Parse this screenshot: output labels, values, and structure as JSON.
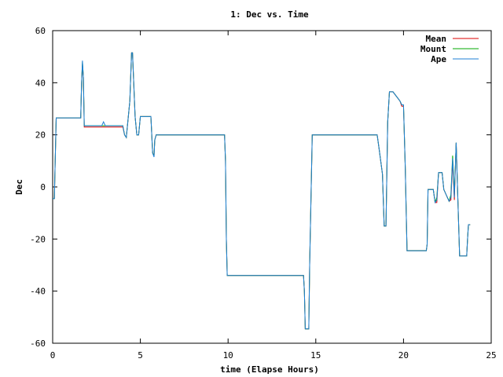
{
  "chart_data": {
    "type": "line",
    "title": "1: Dec vs. Time",
    "xlabel": "time (Elapse Hours)",
    "ylabel": "Dec",
    "xlim": [
      0,
      25
    ],
    "ylim": [
      -60,
      60
    ],
    "xticks": [
      0,
      5,
      10,
      15,
      20,
      25
    ],
    "yticks": [
      -60,
      -40,
      -20,
      0,
      20,
      40,
      60
    ],
    "grid": false,
    "legend_position": "top-right",
    "colors": {
      "mean": "#dd0000",
      "mount": "#00aa00",
      "ape": "#1f7fd6"
    },
    "series": [
      {
        "name": "Mean",
        "x": [
          0,
          0.1,
          0.12,
          0.2,
          1.6,
          1.65,
          1.7,
          1.75,
          1.8,
          1.85,
          4.0,
          4.1,
          4.2,
          4.4,
          4.5,
          4.55,
          4.7,
          4.8,
          4.9,
          5.0,
          5.6,
          5.7,
          5.78,
          5.82,
          5.9,
          9.8,
          9.85,
          9.9,
          9.95,
          10.0,
          14.3,
          14.35,
          14.4,
          14.6,
          14.65,
          14.8,
          18.5,
          18.6,
          18.8,
          18.9,
          19.0,
          19.1,
          19.2,
          19.3,
          19.4,
          19.8,
          19.9,
          20.0,
          20.1,
          20.2,
          21.3,
          21.35,
          21.4,
          21.5,
          21.7,
          21.8,
          21.9,
          22.0,
          22.2,
          22.3,
          22.6,
          22.7,
          22.8,
          22.9,
          23.0,
          23.1,
          23.2,
          23.3,
          23.6,
          23.65,
          23.7,
          23.8
        ],
        "y": [
          -4.5,
          -4.5,
          3,
          26.5,
          26.5,
          40,
          47,
          42,
          23,
          23,
          23,
          20,
          19,
          33,
          51.5,
          51.5,
          27,
          20,
          20,
          27,
          27,
          13,
          12,
          18,
          20,
          20,
          10,
          -20,
          -34,
          -34,
          -34,
          -40,
          -54.5,
          -54.5,
          -30,
          20,
          20,
          15,
          5,
          -15,
          -15,
          25,
          36.5,
          36.5,
          36.5,
          33,
          31,
          31,
          8,
          -24.5,
          -24.5,
          -22,
          -1,
          -1,
          -1,
          -6,
          -6,
          5.5,
          5.5,
          -1,
          -5.5,
          -5,
          10,
          -5,
          17,
          -5,
          -26.5,
          -26.5,
          -26.5,
          -20,
          -14.5,
          -14.5
        ]
      },
      {
        "name": "Mount",
        "x": [
          0,
          0.1,
          0.12,
          0.2,
          1.6,
          1.65,
          1.7,
          1.75,
          1.8,
          1.85,
          4.0,
          4.1,
          4.2,
          4.4,
          4.5,
          4.55,
          4.7,
          4.8,
          4.9,
          5.0,
          5.6,
          5.7,
          5.78,
          5.82,
          5.9,
          9.8,
          9.85,
          9.9,
          9.95,
          10.0,
          14.3,
          14.35,
          14.4,
          14.6,
          14.65,
          14.8,
          18.5,
          18.6,
          18.8,
          18.9,
          19.0,
          19.1,
          19.2,
          19.3,
          19.4,
          19.8,
          19.9,
          20.0,
          20.1,
          20.2,
          21.3,
          21.35,
          21.4,
          21.5,
          21.7,
          21.8,
          21.9,
          22.0,
          22.2,
          22.3,
          22.6,
          22.7,
          22.8,
          22.9,
          23.0,
          23.1,
          23.2,
          23.3,
          23.6,
          23.65,
          23.7,
          23.8
        ],
        "y": [
          -4.5,
          -4.5,
          3,
          26.5,
          26.5,
          40,
          48,
          42,
          23.5,
          23.5,
          23.5,
          20,
          19,
          33,
          51.5,
          51.5,
          27,
          20,
          20,
          27,
          27,
          13,
          12,
          18,
          20,
          20,
          10,
          -20,
          -34,
          -34,
          -34,
          -40,
          -54.5,
          -54.5,
          -30,
          20,
          20,
          15,
          5,
          -15,
          -15,
          25,
          36.5,
          36.5,
          36.5,
          33,
          31.5,
          31.5,
          8,
          -24.5,
          -24.5,
          -22,
          -1,
          -1,
          -1,
          -6,
          -4,
          5.5,
          5.5,
          -1,
          -5.5,
          -3,
          12,
          -3,
          17,
          -5,
          -26.5,
          -26.5,
          -26.5,
          -20,
          -14.5,
          -14.5
        ]
      },
      {
        "name": "Ape",
        "x": [
          0,
          0.1,
          0.12,
          0.2,
          1.6,
          1.65,
          1.7,
          1.75,
          1.8,
          1.85,
          2.8,
          2.9,
          3.0,
          3.1,
          4.0,
          4.1,
          4.2,
          4.4,
          4.5,
          4.55,
          4.7,
          4.8,
          4.9,
          5.0,
          5.6,
          5.7,
          5.78,
          5.82,
          5.9,
          9.8,
          9.85,
          9.9,
          9.95,
          10.0,
          14.3,
          14.35,
          14.4,
          14.6,
          14.65,
          14.8,
          18.5,
          18.6,
          18.8,
          18.9,
          19.0,
          19.1,
          19.2,
          19.3,
          19.4,
          19.8,
          19.9,
          20.0,
          20.1,
          20.2,
          21.3,
          21.35,
          21.4,
          21.5,
          21.7,
          21.8,
          21.9,
          22.0,
          22.2,
          22.3,
          22.6,
          22.7,
          22.8,
          22.9,
          23.0,
          23.1,
          23.2,
          23.3,
          23.6,
          23.65,
          23.7,
          23.8
        ],
        "y": [
          -4.5,
          -4.5,
          3,
          26.5,
          26.5,
          40,
          48.5,
          42,
          23.5,
          23.5,
          23.5,
          25,
          23.5,
          23.5,
          23.5,
          20,
          19,
          33,
          51.5,
          51.5,
          27,
          20,
          20,
          27,
          27,
          13,
          11.5,
          18,
          20,
          20,
          10,
          -20,
          -34,
          -34,
          -34,
          -40,
          -54.5,
          -54.5,
          -30,
          20,
          20,
          15,
          5,
          -15,
          -15,
          25,
          36.5,
          36.5,
          36.5,
          33,
          31.5,
          31.5,
          8,
          -24.5,
          -24.5,
          -22,
          -1,
          -1,
          -1,
          -6,
          -5,
          5.5,
          5.5,
          -1,
          -5.5,
          -4,
          11,
          -4,
          17,
          -5,
          -26.5,
          -26.5,
          -26.5,
          -20,
          -14.5,
          -14.5
        ]
      }
    ]
  }
}
